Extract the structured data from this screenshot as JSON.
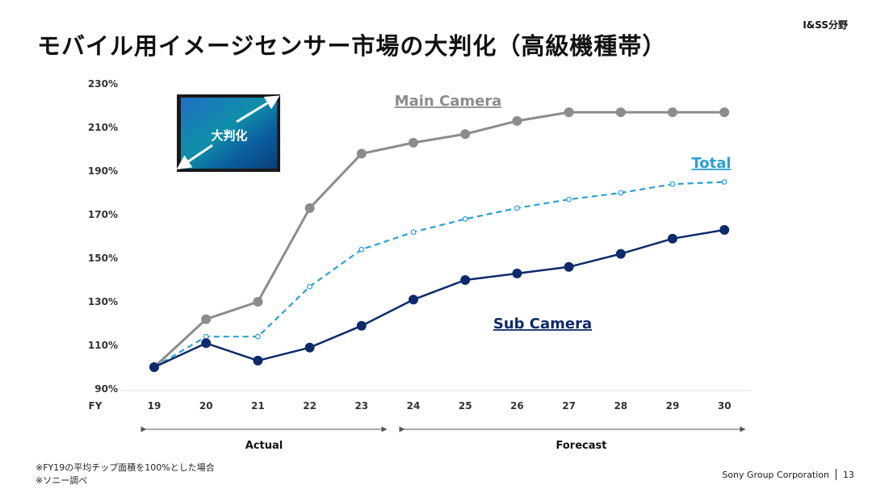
{
  "header": {
    "segment": "I&SS分野",
    "title": "モバイル用イメージセンサー市場の大判化（高級機種帯）"
  },
  "inset": {
    "label": "大判化"
  },
  "periods": {
    "actual": "Actual",
    "forecast": "Forecast"
  },
  "footnotes": [
    "※FY19の平均チップ面積を100%とした場合",
    "※ソニー調べ"
  ],
  "footer": {
    "company": "Sony Group Corporation",
    "page": "13"
  },
  "colors": {
    "main": "#8c8c8c",
    "total": "#2a9fd8",
    "sub": "#0d2a6b"
  },
  "chart_data": {
    "type": "line",
    "xlabel": "FY",
    "categories": [
      "19",
      "20",
      "21",
      "22",
      "23",
      "24",
      "25",
      "26",
      "27",
      "28",
      "29",
      "30"
    ],
    "y_ticks": [
      "90%",
      "110%",
      "130%",
      "150%",
      "170%",
      "190%",
      "210%",
      "230%"
    ],
    "ylim": [
      90,
      230
    ],
    "grid": false,
    "series": [
      {
        "name": "Main Camera",
        "style": "solid-thick",
        "values": [
          100,
          122,
          130,
          173,
          198,
          203,
          207,
          213,
          217,
          217,
          217,
          217
        ]
      },
      {
        "name": "Total",
        "style": "dashed",
        "values": [
          100,
          114,
          114,
          137,
          154,
          162,
          168,
          173,
          177,
          180,
          184,
          185
        ]
      },
      {
        "name": "Sub Camera",
        "style": "solid",
        "values": [
          100,
          111,
          103,
          109,
          119,
          131,
          140,
          143,
          146,
          152,
          159,
          163
        ]
      }
    ]
  }
}
